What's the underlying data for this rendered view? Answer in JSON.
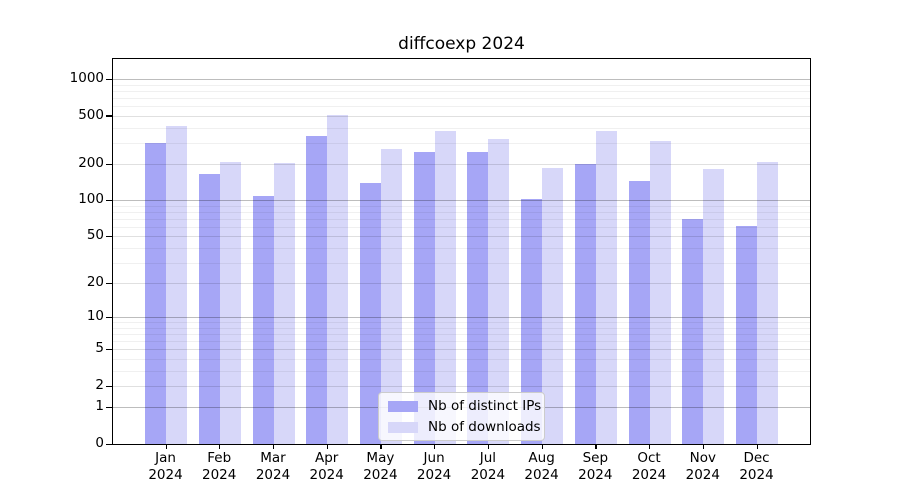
{
  "chart_data": {
    "type": "bar",
    "title": "diffcoexp 2024",
    "categories": [
      "Jan",
      "Feb",
      "Mar",
      "Apr",
      "May",
      "Jun",
      "Jul",
      "Aug",
      "Sep",
      "Oct",
      "Nov",
      "Dec"
    ],
    "year_label": "2024",
    "series": [
      {
        "name": "Nb of distinct IPs",
        "color": "#a6a6f6",
        "values": [
          298,
          165,
          109,
          341,
          140,
          251,
          251,
          103,
          200,
          144,
          70,
          61
        ]
      },
      {
        "name": "Nb of downloads",
        "color": "#d7d7f9",
        "values": [
          411,
          208,
          205,
          508,
          266,
          375,
          325,
          184,
          377,
          310,
          181,
          209
        ]
      }
    ],
    "y_axis": {
      "scale": "log1p",
      "ticks": [
        0,
        1,
        2,
        5,
        10,
        20,
        50,
        100,
        200,
        500,
        1000
      ],
      "ylim": [
        0,
        1460
      ]
    },
    "xlabel": "",
    "ylabel": "",
    "grid": "on",
    "legend_position": "bottom-center"
  }
}
